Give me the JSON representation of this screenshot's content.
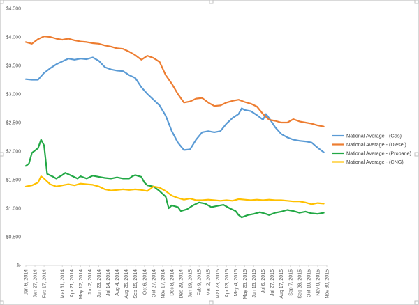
{
  "chart_data": {
    "type": "line",
    "title": "",
    "xlabel": "",
    "ylabel": "",
    "ylim": [
      0,
      4.5
    ],
    "grid": false,
    "legend_position": "right",
    "y_ticks": [
      {
        "value": 0,
        "label": "$-"
      },
      {
        "value": 0.5,
        "label": "$0.500"
      },
      {
        "value": 1.0,
        "label": "$1.000"
      },
      {
        "value": 1.5,
        "label": "$1.500"
      },
      {
        "value": 2.0,
        "label": "$2.000"
      },
      {
        "value": 2.5,
        "label": "$2.500"
      },
      {
        "value": 3.0,
        "label": "$3.000"
      },
      {
        "value": 3.5,
        "label": "$3.500"
      },
      {
        "value": 4.0,
        "label": "$4.000"
      },
      {
        "value": 4.5,
        "label": "$4.500"
      }
    ],
    "x_ticks": [
      {
        "x": 0,
        "label": "Jan 6, 2014"
      },
      {
        "x": 3,
        "label": "Jan 27, 2014"
      },
      {
        "x": 6,
        "label": "Feb 17, 2014"
      },
      {
        "x": 12,
        "label": "Mar 31, 2014"
      },
      {
        "x": 15,
        "label": "Apr 21, 2014"
      },
      {
        "x": 18,
        "label": "May 12, 2014"
      },
      {
        "x": 21,
        "label": "Jun 2, 2014"
      },
      {
        "x": 24,
        "label": "Jun 23, 2014"
      },
      {
        "x": 27,
        "label": "Jul 14, 2014"
      },
      {
        "x": 30,
        "label": "Aug 4, 2014"
      },
      {
        "x": 33,
        "label": "Aug 25, 2014"
      },
      {
        "x": 36,
        "label": "Sep 15, 2014"
      },
      {
        "x": 39,
        "label": "Oct 6, 2014"
      },
      {
        "x": 42,
        "label": "Oct 27, 2014"
      },
      {
        "x": 45,
        "label": "Nov 17, 2014"
      },
      {
        "x": 48,
        "label": "Dec 8, 2014"
      },
      {
        "x": 51,
        "label": "Dec 29, 2014"
      },
      {
        "x": 54,
        "label": "Jan 19, 2015"
      },
      {
        "x": 57,
        "label": "Feb 9, 2015"
      },
      {
        "x": 60,
        "label": "Mar 2, 2015"
      },
      {
        "x": 63,
        "label": "Mar 23, 2015"
      },
      {
        "x": 66,
        "label": "Apr 13, 2015"
      },
      {
        "x": 69,
        "label": "May 4, 2015"
      },
      {
        "x": 72,
        "label": "May 25, 2015"
      },
      {
        "x": 75,
        "label": "Jun 15, 2015"
      },
      {
        "x": 78,
        "label": "Jul 6, 2015"
      },
      {
        "x": 81,
        "label": "Jul 27, 2015"
      },
      {
        "x": 84,
        "label": "Aug 17, 2015"
      },
      {
        "x": 87,
        "label": "Sep 7, 2015"
      },
      {
        "x": 90,
        "label": "Sep 28, 2015"
      },
      {
        "x": 93,
        "label": "Oct 19, 2015"
      },
      {
        "x": 96,
        "label": "Nov 9, 2015"
      },
      {
        "x": 99,
        "label": "Nov 30, 2015"
      }
    ],
    "x_range": [
      0,
      99
    ],
    "series": [
      {
        "name": "National Average - (Gas)",
        "color": "#5b9bd5",
        "points": [
          [
            0,
            3.26
          ],
          [
            2,
            3.25
          ],
          [
            4,
            3.25
          ],
          [
            6,
            3.37
          ],
          [
            8,
            3.45
          ],
          [
            10,
            3.52
          ],
          [
            12,
            3.57
          ],
          [
            14,
            3.62
          ],
          [
            16,
            3.6
          ],
          [
            18,
            3.62
          ],
          [
            20,
            3.61
          ],
          [
            22,
            3.64
          ],
          [
            24,
            3.58
          ],
          [
            26,
            3.47
          ],
          [
            28,
            3.43
          ],
          [
            30,
            3.41
          ],
          [
            32,
            3.4
          ],
          [
            34,
            3.33
          ],
          [
            36,
            3.28
          ],
          [
            38,
            3.12
          ],
          [
            40,
            3.0
          ],
          [
            42,
            2.9
          ],
          [
            44,
            2.8
          ],
          [
            46,
            2.62
          ],
          [
            48,
            2.35
          ],
          [
            50,
            2.15
          ],
          [
            52,
            2.02
          ],
          [
            54,
            2.03
          ],
          [
            56,
            2.2
          ],
          [
            58,
            2.33
          ],
          [
            60,
            2.35
          ],
          [
            62,
            2.33
          ],
          [
            64,
            2.35
          ],
          [
            66,
            2.48
          ],
          [
            68,
            2.58
          ],
          [
            70,
            2.65
          ],
          [
            71,
            2.75
          ],
          [
            72,
            2.72
          ],
          [
            74,
            2.7
          ],
          [
            76,
            2.63
          ],
          [
            78,
            2.55
          ],
          [
            79,
            2.65
          ],
          [
            80,
            2.58
          ],
          [
            82,
            2.42
          ],
          [
            84,
            2.3
          ],
          [
            86,
            2.24
          ],
          [
            88,
            2.2
          ],
          [
            90,
            2.18
          ],
          [
            92,
            2.17
          ],
          [
            94,
            2.15
          ],
          [
            96,
            2.06
          ],
          [
            98,
            1.98
          ]
        ]
      },
      {
        "name": "National Average - (Diesel)",
        "color": "#ed7d31",
        "points": [
          [
            0,
            3.91
          ],
          [
            2,
            3.88
          ],
          [
            4,
            3.96
          ],
          [
            6,
            4.01
          ],
          [
            8,
            4.0
          ],
          [
            10,
            3.97
          ],
          [
            12,
            3.95
          ],
          [
            14,
            3.97
          ],
          [
            16,
            3.94
          ],
          [
            18,
            3.92
          ],
          [
            20,
            3.91
          ],
          [
            22,
            3.89
          ],
          [
            24,
            3.88
          ],
          [
            26,
            3.85
          ],
          [
            28,
            3.83
          ],
          [
            30,
            3.8
          ],
          [
            32,
            3.79
          ],
          [
            34,
            3.74
          ],
          [
            36,
            3.68
          ],
          [
            38,
            3.6
          ],
          [
            40,
            3.67
          ],
          [
            42,
            3.63
          ],
          [
            44,
            3.56
          ],
          [
            46,
            3.33
          ],
          [
            48,
            3.18
          ],
          [
            50,
            3.0
          ],
          [
            52,
            2.85
          ],
          [
            54,
            2.87
          ],
          [
            56,
            2.92
          ],
          [
            58,
            2.93
          ],
          [
            60,
            2.85
          ],
          [
            62,
            2.79
          ],
          [
            64,
            2.8
          ],
          [
            66,
            2.85
          ],
          [
            68,
            2.88
          ],
          [
            70,
            2.9
          ],
          [
            72,
            2.86
          ],
          [
            74,
            2.83
          ],
          [
            76,
            2.78
          ],
          [
            78,
            2.65
          ],
          [
            80,
            2.55
          ],
          [
            82,
            2.53
          ],
          [
            84,
            2.5
          ],
          [
            86,
            2.5
          ],
          [
            88,
            2.56
          ],
          [
            90,
            2.52
          ],
          [
            92,
            2.5
          ],
          [
            94,
            2.48
          ],
          [
            96,
            2.45
          ],
          [
            98,
            2.43
          ]
        ]
      },
      {
        "name": "National Average - (Propane)",
        "color": "#22a845",
        "points": [
          [
            0,
            1.74
          ],
          [
            1,
            1.78
          ],
          [
            2,
            1.97
          ],
          [
            4,
            2.05
          ],
          [
            5,
            2.2
          ],
          [
            6,
            2.1
          ],
          [
            7,
            1.6
          ],
          [
            9,
            1.55
          ],
          [
            10,
            1.52
          ],
          [
            12,
            1.58
          ],
          [
            13,
            1.62
          ],
          [
            15,
            1.57
          ],
          [
            17,
            1.52
          ],
          [
            18,
            1.56
          ],
          [
            20,
            1.52
          ],
          [
            22,
            1.57
          ],
          [
            24,
            1.55
          ],
          [
            26,
            1.53
          ],
          [
            28,
            1.52
          ],
          [
            30,
            1.54
          ],
          [
            32,
            1.52
          ],
          [
            34,
            1.52
          ],
          [
            35,
            1.56
          ],
          [
            36,
            1.58
          ],
          [
            38,
            1.55
          ],
          [
            39,
            1.45
          ],
          [
            40,
            1.4
          ],
          [
            42,
            1.38
          ],
          [
            44,
            1.3
          ],
          [
            46,
            1.2
          ],
          [
            47,
            1.0
          ],
          [
            48,
            1.05
          ],
          [
            50,
            1.02
          ],
          [
            51,
            0.95
          ],
          [
            53,
            0.98
          ],
          [
            55,
            1.05
          ],
          [
            57,
            1.1
          ],
          [
            59,
            1.08
          ],
          [
            61,
            1.02
          ],
          [
            63,
            1.04
          ],
          [
            65,
            1.06
          ],
          [
            67,
            1.0
          ],
          [
            69,
            0.95
          ],
          [
            70,
            0.88
          ],
          [
            71,
            0.84
          ],
          [
            73,
            0.88
          ],
          [
            75,
            0.9
          ],
          [
            77,
            0.93
          ],
          [
            79,
            0.9
          ],
          [
            80,
            0.88
          ],
          [
            82,
            0.92
          ],
          [
            84,
            0.94
          ],
          [
            86,
            0.97
          ],
          [
            88,
            0.95
          ],
          [
            90,
            0.92
          ],
          [
            92,
            0.94
          ],
          [
            94,
            0.91
          ],
          [
            96,
            0.9
          ],
          [
            98,
            0.92
          ]
        ]
      },
      {
        "name": "National Average - (CNG)",
        "color": "#ffc000",
        "points": [
          [
            0,
            1.38
          ],
          [
            2,
            1.4
          ],
          [
            4,
            1.45
          ],
          [
            5,
            1.56
          ],
          [
            6,
            1.52
          ],
          [
            8,
            1.42
          ],
          [
            10,
            1.38
          ],
          [
            12,
            1.4
          ],
          [
            14,
            1.42
          ],
          [
            16,
            1.4
          ],
          [
            18,
            1.43
          ],
          [
            20,
            1.42
          ],
          [
            22,
            1.41
          ],
          [
            24,
            1.38
          ],
          [
            26,
            1.33
          ],
          [
            28,
            1.31
          ],
          [
            30,
            1.32
          ],
          [
            32,
            1.33
          ],
          [
            34,
            1.32
          ],
          [
            36,
            1.33
          ],
          [
            38,
            1.32
          ],
          [
            40,
            1.3
          ],
          [
            42,
            1.38
          ],
          [
            44,
            1.36
          ],
          [
            46,
            1.3
          ],
          [
            48,
            1.22
          ],
          [
            50,
            1.18
          ],
          [
            52,
            1.15
          ],
          [
            54,
            1.17
          ],
          [
            56,
            1.14
          ],
          [
            58,
            1.14
          ],
          [
            60,
            1.15
          ],
          [
            62,
            1.14
          ],
          [
            64,
            1.13
          ],
          [
            66,
            1.14
          ],
          [
            68,
            1.13
          ],
          [
            70,
            1.16
          ],
          [
            72,
            1.15
          ],
          [
            74,
            1.14
          ],
          [
            76,
            1.15
          ],
          [
            78,
            1.14
          ],
          [
            80,
            1.15
          ],
          [
            82,
            1.14
          ],
          [
            84,
            1.14
          ],
          [
            86,
            1.13
          ],
          [
            88,
            1.12
          ],
          [
            90,
            1.12
          ],
          [
            92,
            1.1
          ],
          [
            94,
            1.07
          ],
          [
            96,
            1.09
          ],
          [
            98,
            1.08
          ]
        ]
      }
    ]
  }
}
